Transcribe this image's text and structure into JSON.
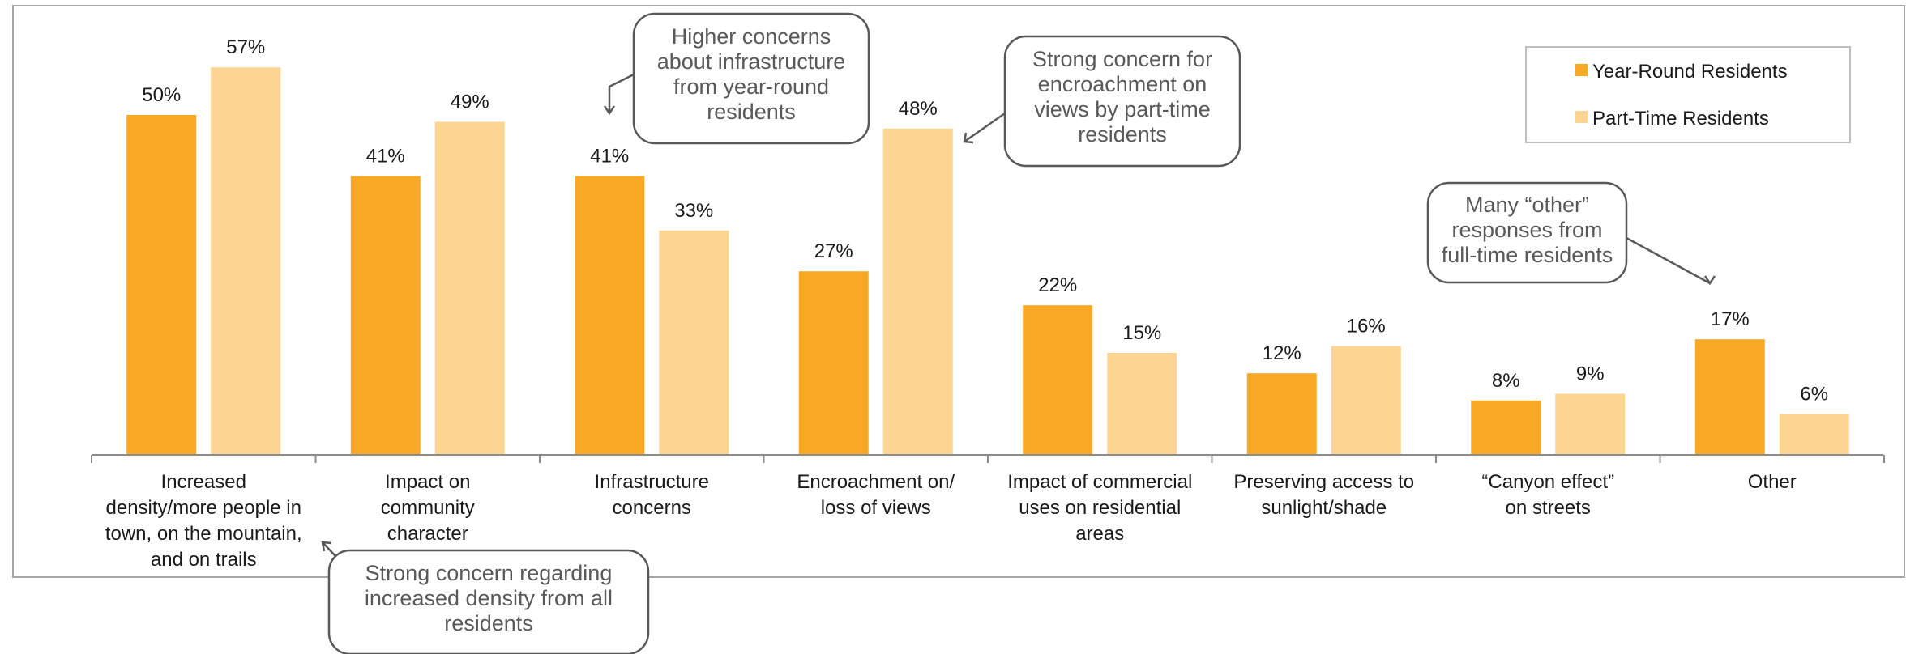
{
  "chart_data": {
    "type": "bar",
    "categories": [
      [
        "Increased",
        "density/more people in",
        "town, on the mountain,",
        "and on trails"
      ],
      [
        "Impact on",
        "community",
        "character"
      ],
      [
        "Infrastructure",
        "concerns"
      ],
      [
        "Encroachment on/",
        "loss of views"
      ],
      [
        "Impact of commercial",
        "uses on residential",
        "areas"
      ],
      [
        "Preserving access to",
        "sunlight/shade"
      ],
      [
        "“Canyon effect”",
        "on streets"
      ],
      [
        "Other"
      ]
    ],
    "series": [
      {
        "name": "Year-Round Residents",
        "color": "#F9A825",
        "values": [
          50,
          41,
          41,
          27,
          22,
          12,
          8,
          17
        ]
      },
      {
        "name": "Part-Time Residents",
        "color": "#FCD592",
        "values": [
          57,
          49,
          33,
          48,
          15,
          16,
          9,
          6
        ]
      }
    ],
    "value_suffix": "%",
    "ylim": [
      0,
      60
    ],
    "grid": false,
    "legend_position": "top-right",
    "annotations": [
      {
        "text": [
          "Higher concerns",
          "about infrastructure",
          "from year-round",
          "residents"
        ],
        "points_to_category": 2,
        "series": 0
      },
      {
        "text": [
          "Strong concern for",
          "encroachment on",
          "views by part-time",
          "residents"
        ],
        "points_to_category": 3,
        "series": 1
      },
      {
        "text": [
          "Many “other”",
          "responses from",
          "full-time residents"
        ],
        "points_to_category": 7,
        "series": 0
      },
      {
        "text": [
          "Strong concern regarding",
          "increased density from all",
          "residents"
        ],
        "points_to_category": 0,
        "series": "all"
      }
    ]
  }
}
